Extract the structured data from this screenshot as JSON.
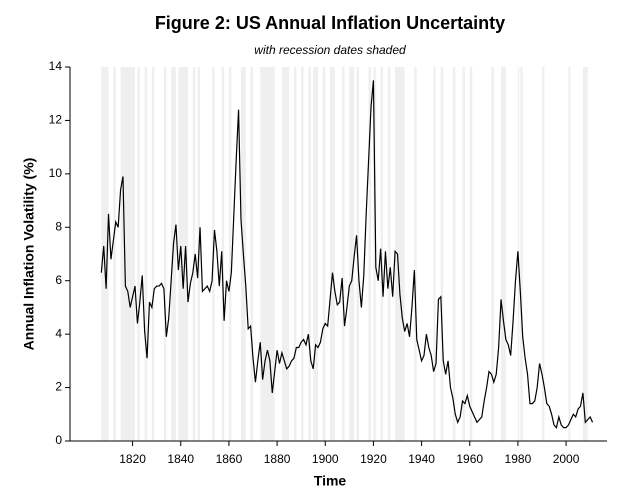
{
  "chart_data": {
    "type": "line",
    "title": "Figure 2: US Annual Inflation Uncertainty",
    "subtitle": "with recession dates shaded",
    "x_label": "Time",
    "y_label": "Annual Inflation Volatility (%)",
    "xlim": [
      1794,
      2017
    ],
    "ylim": [
      0,
      14
    ],
    "xticks": [
      1820,
      1840,
      1860,
      1880,
      1900,
      1920,
      1940,
      1960,
      1980,
      2000
    ],
    "yticks": [
      0,
      2,
      4,
      6,
      8,
      10,
      12,
      14
    ],
    "recession_color": "#efefef",
    "recessions": [
      [
        1807,
        1810
      ],
      [
        1812,
        1813
      ],
      [
        1815,
        1821
      ],
      [
        1822,
        1823
      ],
      [
        1825,
        1826
      ],
      [
        1828,
        1829
      ],
      [
        1833,
        1834
      ],
      [
        1836,
        1838
      ],
      [
        1839,
        1843
      ],
      [
        1845,
        1846
      ],
      [
        1847,
        1848
      ],
      [
        1853,
        1854
      ],
      [
        1857,
        1858
      ],
      [
        1860,
        1861
      ],
      [
        1865,
        1867
      ],
      [
        1869,
        1870
      ],
      [
        1873,
        1879
      ],
      [
        1882,
        1885
      ],
      [
        1887,
        1888
      ],
      [
        1890,
        1891
      ],
      [
        1893,
        1894
      ],
      [
        1895,
        1897
      ],
      [
        1899,
        1900
      ],
      [
        1902,
        1904
      ],
      [
        1907,
        1908
      ],
      [
        1910,
        1912
      ],
      [
        1913,
        1914
      ],
      [
        1918,
        1919
      ],
      [
        1920,
        1921
      ],
      [
        1923,
        1924
      ],
      [
        1926,
        1927
      ],
      [
        1929,
        1933
      ],
      [
        1937,
        1938
      ],
      [
        1945,
        1945.8
      ],
      [
        1948,
        1949
      ],
      [
        1953,
        1954
      ],
      [
        1957,
        1958
      ],
      [
        1960,
        1961
      ],
      [
        1969,
        1970
      ],
      [
        1973,
        1975
      ],
      [
        1980,
        1980.6
      ],
      [
        1981,
        1982
      ],
      [
        1990,
        1991
      ],
      [
        2001,
        2001.8
      ],
      [
        2007,
        2009
      ]
    ],
    "series": [
      {
        "name": "Annual Inflation Volatility",
        "color": "#000000",
        "x": [
          1807,
          1808,
          1809,
          1810,
          1811,
          1812,
          1813,
          1814,
          1815,
          1816,
          1817,
          1818,
          1819,
          1820,
          1821,
          1822,
          1823,
          1824,
          1825,
          1826,
          1827,
          1828,
          1829,
          1830,
          1831,
          1832,
          1833,
          1834,
          1835,
          1836,
          1837,
          1838,
          1839,
          1840,
          1841,
          1842,
          1843,
          1844,
          1845,
          1846,
          1847,
          1848,
          1849,
          1850,
          1851,
          1852,
          1853,
          1854,
          1855,
          1856,
          1857,
          1858,
          1859,
          1860,
          1861,
          1862,
          1863,
          1864,
          1865,
          1866,
          1867,
          1868,
          1869,
          1870,
          1871,
          1872,
          1873,
          1874,
          1875,
          1876,
          1877,
          1878,
          1879,
          1880,
          1881,
          1882,
          1883,
          1884,
          1885,
          1886,
          1887,
          1888,
          1889,
          1890,
          1891,
          1892,
          1893,
          1894,
          1895,
          1896,
          1897,
          1898,
          1899,
          1900,
          1901,
          1902,
          1903,
          1904,
          1905,
          1906,
          1907,
          1908,
          1909,
          1910,
          1911,
          1912,
          1913,
          1914,
          1915,
          1916,
          1917,
          1918,
          1919,
          1920,
          1921,
          1922,
          1923,
          1924,
          1925,
          1926,
          1927,
          1928,
          1929,
          1930,
          1931,
          1932,
          1933,
          1934,
          1935,
          1936,
          1937,
          1938,
          1939,
          1940,
          1941,
          1942,
          1943,
          1944,
          1945,
          1946,
          1947,
          1948,
          1949,
          1950,
          1951,
          1952,
          1953,
          1954,
          1955,
          1956,
          1957,
          1958,
          1959,
          1960,
          1961,
          1962,
          1963,
          1964,
          1965,
          1966,
          1967,
          1968,
          1969,
          1970,
          1971,
          1972,
          1973,
          1974,
          1975,
          1976,
          1977,
          1978,
          1979,
          1980,
          1981,
          1982,
          1983,
          1984,
          1985,
          1986,
          1987,
          1988,
          1989,
          1990,
          1991,
          1992,
          1993,
          1994,
          1995,
          1996,
          1997,
          1998,
          1999,
          2000,
          2001,
          2002,
          2003,
          2004,
          2005,
          2006,
          2007,
          2008,
          2009,
          2010,
          2011
        ],
        "values": [
          6.3,
          7.3,
          5.7,
          8.5,
          6.8,
          7.5,
          8.2,
          8.0,
          9.4,
          9.9,
          5.8,
          5.6,
          5.0,
          5.4,
          5.8,
          4.4,
          5.2,
          6.2,
          4.1,
          3.1,
          5.2,
          5.0,
          5.7,
          5.8,
          5.8,
          5.9,
          5.7,
          3.9,
          4.6,
          6.0,
          7.4,
          8.1,
          6.4,
          7.3,
          5.7,
          7.3,
          5.2,
          5.9,
          6.3,
          7.0,
          6.1,
          8.0,
          5.6,
          5.7,
          5.8,
          5.6,
          6.0,
          7.9,
          7.1,
          5.8,
          7.1,
          4.5,
          6.0,
          5.6,
          6.3,
          8.4,
          10.5,
          12.4,
          8.3,
          7.0,
          5.8,
          4.2,
          4.3,
          3.1,
          2.2,
          3.0,
          3.7,
          2.3,
          3.0,
          3.4,
          3.0,
          1.8,
          2.6,
          3.4,
          2.9,
          3.3,
          3.0,
          2.7,
          2.8,
          3.0,
          3.1,
          3.5,
          3.5,
          3.7,
          3.8,
          3.6,
          4.0,
          3.0,
          2.7,
          3.6,
          3.5,
          3.7,
          4.2,
          4.4,
          4.3,
          5.3,
          6.3,
          5.6,
          5.1,
          5.2,
          6.1,
          4.3,
          5.0,
          5.8,
          6.0,
          6.9,
          7.7,
          6.0,
          5.0,
          6.2,
          8.5,
          10.5,
          12.5,
          13.5,
          6.5,
          6.0,
          7.2,
          5.4,
          7.1,
          5.7,
          6.5,
          5.4,
          7.1,
          7.0,
          5.5,
          4.6,
          4.1,
          4.4,
          3.9,
          5.0,
          6.4,
          3.8,
          3.4,
          3.0,
          3.2,
          4.0,
          3.5,
          3.2,
          2.6,
          2.9,
          5.3,
          5.4,
          3.0,
          2.5,
          3.0,
          2.0,
          1.6,
          1.0,
          0.7,
          0.9,
          1.5,
          1.4,
          1.7,
          1.3,
          1.1,
          0.9,
          0.7,
          0.8,
          0.9,
          1.5,
          2.0,
          2.6,
          2.5,
          2.2,
          2.5,
          3.5,
          5.3,
          4.5,
          3.8,
          3.6,
          3.2,
          4.5,
          6.0,
          7.1,
          5.6,
          3.9,
          3.1,
          2.5,
          1.4,
          1.4,
          1.5,
          2.0,
          2.9,
          2.5,
          2.0,
          1.4,
          1.3,
          1.0,
          0.6,
          0.5,
          0.9,
          0.6,
          0.5,
          0.5,
          0.6,
          0.8,
          1.0,
          0.9,
          1.2,
          1.3,
          1.8,
          0.7,
          0.8,
          0.9,
          0.7
        ]
      }
    ]
  }
}
